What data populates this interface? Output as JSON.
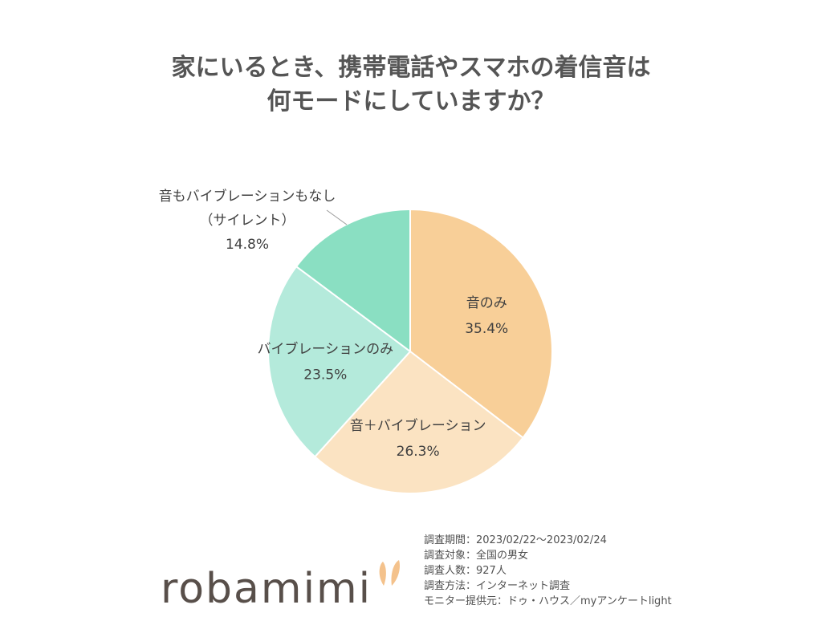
{
  "title": {
    "line1": "家にいるとき、携帯電話やスマホの着信音は",
    "line2": "何モードにしていますか？"
  },
  "chart_data": {
    "type": "pie",
    "start_angle_deg": 0,
    "direction": "clockwise",
    "slices": [
      {
        "label": "音のみ",
        "value": 35.4,
        "display": "35.4%",
        "color": "#f8cf98"
      },
      {
        "label": "音＋バイブレーション",
        "value": 26.3,
        "display": "26.3%",
        "color": "#fbe3c2"
      },
      {
        "label": "バイブレーションのみ",
        "value": 23.5,
        "display": "23.5%",
        "color": "#b4eadb"
      },
      {
        "label_lines": [
          "音もバイブレーションもなし",
          "（サイレント）"
        ],
        "value": 14.8,
        "display": "14.8%",
        "color": "#8adfc2",
        "label_outside": true
      }
    ]
  },
  "notes": [
    "調査期間：2023/02/22～2023/02/24",
    "調査対象：全国の男女",
    "調査人数：927人",
    "調査方法：インターネット調査",
    "モニター提供元：ドゥ・ハウス／myアンケートlight"
  ],
  "logo": {
    "text": "robamimi",
    "ear_color": "#f4c28c",
    "text_color": "#584f4a"
  }
}
